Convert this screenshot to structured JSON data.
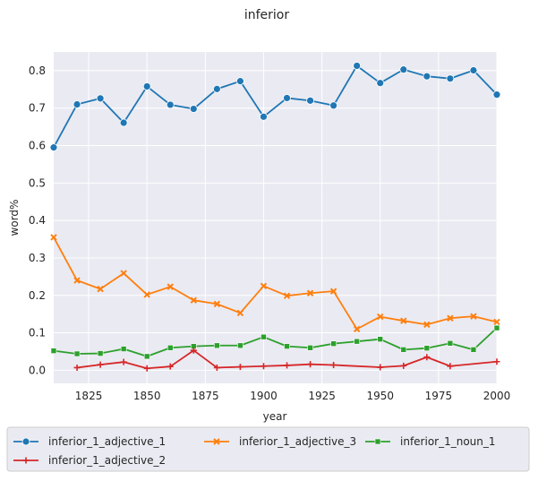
{
  "chart_data": {
    "type": "line",
    "title": "inferior",
    "xlabel": "year",
    "ylabel": "word%",
    "xlim": [
      1810,
      2000
    ],
    "ylim": [
      -0.035,
      0.85
    ],
    "xticks": [
      1825,
      1850,
      1875,
      1900,
      1925,
      1950,
      1975,
      2000
    ],
    "yticks": [
      0.0,
      0.1,
      0.2,
      0.3,
      0.4,
      0.5,
      0.6,
      0.7,
      0.8
    ],
    "grid": true,
    "legend_position": "bottom",
    "series": [
      {
        "name": "inferior_1_adjective_1",
        "color": "#1f77b4",
        "marker": "circle",
        "x": [
          1810,
          1820,
          1830,
          1840,
          1850,
          1860,
          1870,
          1880,
          1890,
          1900,
          1910,
          1920,
          1930,
          1940,
          1950,
          1960,
          1970,
          1980,
          1990,
          2000
        ],
        "y": [
          0.595,
          0.71,
          0.726,
          0.661,
          0.758,
          0.709,
          0.698,
          0.751,
          0.772,
          0.677,
          0.727,
          0.72,
          0.707,
          0.813,
          0.767,
          0.803,
          0.785,
          0.779,
          0.801,
          0.736
        ]
      },
      {
        "name": "inferior_1_adjective_3",
        "color": "#ff7f0e",
        "marker": "x",
        "x": [
          1810,
          1820,
          1830,
          1840,
          1850,
          1860,
          1870,
          1880,
          1890,
          1900,
          1910,
          1920,
          1930,
          1940,
          1950,
          1960,
          1970,
          1980,
          1990,
          2000
        ],
        "y": [
          0.355,
          0.24,
          0.217,
          0.259,
          0.202,
          0.223,
          0.187,
          0.177,
          0.153,
          0.225,
          0.199,
          0.206,
          0.211,
          0.11,
          0.143,
          0.132,
          0.122,
          0.139,
          0.144,
          0.129
        ]
      },
      {
        "name": "inferior_1_noun_1",
        "color": "#2ca02c",
        "marker": "square",
        "x": [
          1810,
          1820,
          1830,
          1840,
          1850,
          1860,
          1870,
          1880,
          1890,
          1900,
          1910,
          1920,
          1930,
          1940,
          1950,
          1960,
          1970,
          1980,
          1990,
          2000
        ],
        "y": [
          0.052,
          0.044,
          0.045,
          0.057,
          0.037,
          0.06,
          0.064,
          0.066,
          0.066,
          0.089,
          0.064,
          0.06,
          0.071,
          0.077,
          0.083,
          0.055,
          0.059,
          0.072,
          0.055,
          0.113
        ]
      },
      {
        "name": "inferior_1_adjective_2",
        "color": "#d62728",
        "marker": "plus",
        "x": [
          1820,
          1830,
          1840,
          1850,
          1860,
          1870,
          1880,
          1890,
          1900,
          1910,
          1920,
          1930,
          1950,
          1960,
          1970,
          1980,
          2000
        ],
        "y": [
          0.007,
          0.015,
          0.022,
          0.005,
          0.01,
          0.053,
          0.007,
          0.009,
          0.011,
          0.013,
          0.016,
          0.014,
          0.008,
          0.012,
          0.035,
          0.011,
          0.023
        ]
      }
    ]
  }
}
